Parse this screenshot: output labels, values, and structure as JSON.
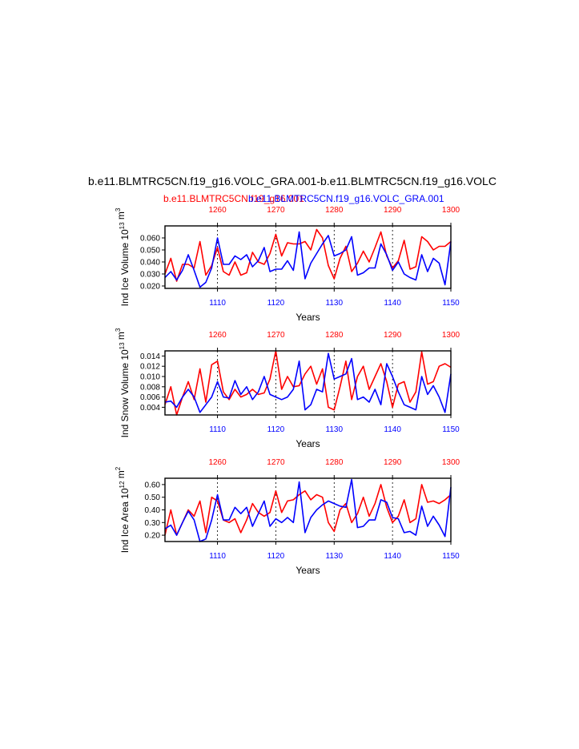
{
  "main_title": "b.e11.BLMTRC5CN.f19_g16.VOLC_GRA.001-b.e11.BLMTRC5CN.f19_g16.VOLC",
  "legend_red": "b.e11.BLMTRC5CN.f19_g16.001",
  "legend_blue": "b.e11.BLMTRC5CN.f19_g16.VOLC_GRA.001",
  "colors": {
    "red": "#ff0000",
    "blue": "#0000ff",
    "axis": "#000000"
  },
  "chart_data": [
    {
      "type": "line",
      "ylabel": "Ind Ice Volume 10^13 m^3",
      "xlabel": "Years",
      "ylim": [
        0.018,
        0.07
      ],
      "yticks": [
        "0.020",
        "0.030",
        "0.040",
        "0.050",
        "0.060"
      ],
      "ytick_values": [
        0.02,
        0.03,
        0.04,
        0.05,
        0.06
      ],
      "x_blue": {
        "range": [
          1101,
          1150
        ],
        "ticks": [
          1110,
          1120,
          1130,
          1140,
          1150
        ]
      },
      "x_red": {
        "range": [
          1251,
          1300
        ],
        "ticks": [
          1260,
          1270,
          1280,
          1290,
          1300
        ]
      },
      "series": [
        {
          "name": "b.e11.BLMTRC5CN.f19_g16.001",
          "color": "red",
          "values": [
            0.03,
            0.043,
            0.024,
            0.038,
            0.038,
            0.035,
            0.057,
            0.029,
            0.037,
            0.052,
            0.032,
            0.029,
            0.04,
            0.029,
            0.031,
            0.048,
            0.04,
            0.038,
            0.047,
            0.063,
            0.045,
            0.056,
            0.055,
            0.055,
            0.057,
            0.05,
            0.067,
            0.06,
            0.037,
            0.026,
            0.043,
            0.053,
            0.032,
            0.039,
            0.049,
            0.04,
            0.052,
            0.065,
            0.045,
            0.035,
            0.041,
            0.058,
            0.034,
            0.036,
            0.061,
            0.057,
            0.05,
            0.053,
            0.053,
            0.057
          ]
        },
        {
          "name": "b.e11.BLMTRC5CN.f19_g16.VOLC_GRA.001",
          "color": "blue",
          "values": [
            0.027,
            0.032,
            0.025,
            0.033,
            0.046,
            0.033,
            0.019,
            0.023,
            0.035,
            0.06,
            0.038,
            0.038,
            0.045,
            0.042,
            0.046,
            0.036,
            0.041,
            0.052,
            0.032,
            0.034,
            0.034,
            0.041,
            0.033,
            0.065,
            0.026,
            0.039,
            0.047,
            0.055,
            0.062,
            0.045,
            0.047,
            0.05,
            0.061,
            0.029,
            0.031,
            0.035,
            0.035,
            0.055,
            0.046,
            0.033,
            0.04,
            0.03,
            0.027,
            0.025,
            0.046,
            0.032,
            0.043,
            0.039,
            0.021,
            0.057
          ]
        }
      ]
    },
    {
      "type": "line",
      "ylabel": "Ind Snow Volume 10^13 m^3",
      "xlabel": "Years",
      "ylim": [
        0.0025,
        0.015
      ],
      "yticks": [
        "0.004",
        "0.006",
        "0.008",
        "0.010",
        "0.012",
        "0.014"
      ],
      "ytick_values": [
        0.004,
        0.006,
        0.008,
        0.01,
        0.012,
        0.014
      ],
      "x_blue": {
        "range": [
          1101,
          1150
        ],
        "ticks": [
          1110,
          1120,
          1130,
          1140,
          1150
        ]
      },
      "x_red": {
        "range": [
          1251,
          1300
        ],
        "ticks": [
          1260,
          1270,
          1280,
          1290,
          1300
        ]
      },
      "series": [
        {
          "name": "b.e11.BLMTRC5CN.f19_g16.001",
          "color": "red",
          "values": [
            0.0045,
            0.008,
            0.0025,
            0.006,
            0.009,
            0.0055,
            0.0115,
            0.005,
            0.0123,
            0.013,
            0.007,
            0.0055,
            0.0075,
            0.006,
            0.0065,
            0.0075,
            0.0065,
            0.0068,
            0.0095,
            0.015,
            0.0075,
            0.01,
            0.008,
            0.0082,
            0.0105,
            0.012,
            0.0085,
            0.0115,
            0.004,
            0.0035,
            0.008,
            0.013,
            0.0055,
            0.01,
            0.012,
            0.0075,
            0.01,
            0.0125,
            0.009,
            0.004,
            0.0085,
            0.009,
            0.005,
            0.007,
            0.0148,
            0.0085,
            0.009,
            0.012,
            0.0125,
            0.0118
          ]
        },
        {
          "name": "b.e11.BLMTRC5CN.f19_g16.VOLC_GRA.001",
          "color": "blue",
          "values": [
            0.005,
            0.0052,
            0.004,
            0.006,
            0.0075,
            0.006,
            0.003,
            0.0045,
            0.006,
            0.009,
            0.006,
            0.0058,
            0.0092,
            0.0065,
            0.008,
            0.0055,
            0.007,
            0.01,
            0.0065,
            0.006,
            0.0055,
            0.006,
            0.0075,
            0.013,
            0.0035,
            0.0045,
            0.0075,
            0.007,
            0.0145,
            0.0095,
            0.01,
            0.0105,
            0.0135,
            0.0055,
            0.006,
            0.005,
            0.0075,
            0.0045,
            0.0125,
            0.01,
            0.007,
            0.0045,
            0.004,
            0.0035,
            0.01,
            0.0065,
            0.0082,
            0.006,
            0.003,
            0.0105
          ]
        }
      ]
    },
    {
      "type": "line",
      "ylabel": "Ind Ice Area 10^12 m^2",
      "xlabel": "Years",
      "ylim": [
        0.15,
        0.65
      ],
      "yticks": [
        "0.20",
        "0.30",
        "0.40",
        "0.50",
        "0.60"
      ],
      "ytick_values": [
        0.2,
        0.3,
        0.4,
        0.5,
        0.6
      ],
      "x_blue": {
        "range": [
          1101,
          1150
        ],
        "ticks": [
          1110,
          1120,
          1130,
          1140,
          1150
        ]
      },
      "x_red": {
        "range": [
          1251,
          1300
        ],
        "ticks": [
          1260,
          1270,
          1280,
          1290,
          1300
        ]
      },
      "series": [
        {
          "name": "b.e11.BLMTRC5CN.f19_g16.001",
          "color": "red",
          "values": [
            0.2,
            0.4,
            0.2,
            0.3,
            0.4,
            0.35,
            0.47,
            0.22,
            0.5,
            0.47,
            0.32,
            0.3,
            0.33,
            0.22,
            0.32,
            0.45,
            0.38,
            0.35,
            0.38,
            0.55,
            0.38,
            0.47,
            0.48,
            0.52,
            0.55,
            0.48,
            0.52,
            0.5,
            0.3,
            0.23,
            0.4,
            0.45,
            0.3,
            0.37,
            0.5,
            0.35,
            0.45,
            0.6,
            0.42,
            0.3,
            0.35,
            0.48,
            0.3,
            0.33,
            0.6,
            0.46,
            0.47,
            0.45,
            0.48,
            0.52
          ]
        },
        {
          "name": "b.e11.BLMTRC5CN.f19_g16.VOLC_GRA.001",
          "color": "blue",
          "values": [
            0.25,
            0.28,
            0.2,
            0.3,
            0.39,
            0.32,
            0.15,
            0.17,
            0.32,
            0.52,
            0.32,
            0.32,
            0.42,
            0.37,
            0.42,
            0.27,
            0.37,
            0.47,
            0.27,
            0.33,
            0.3,
            0.34,
            0.3,
            0.62,
            0.22,
            0.34,
            0.4,
            0.44,
            0.47,
            0.45,
            0.43,
            0.42,
            0.64,
            0.26,
            0.27,
            0.32,
            0.32,
            0.48,
            0.46,
            0.34,
            0.33,
            0.22,
            0.23,
            0.2,
            0.43,
            0.27,
            0.35,
            0.28,
            0.19,
            0.58
          ]
        }
      ]
    }
  ]
}
